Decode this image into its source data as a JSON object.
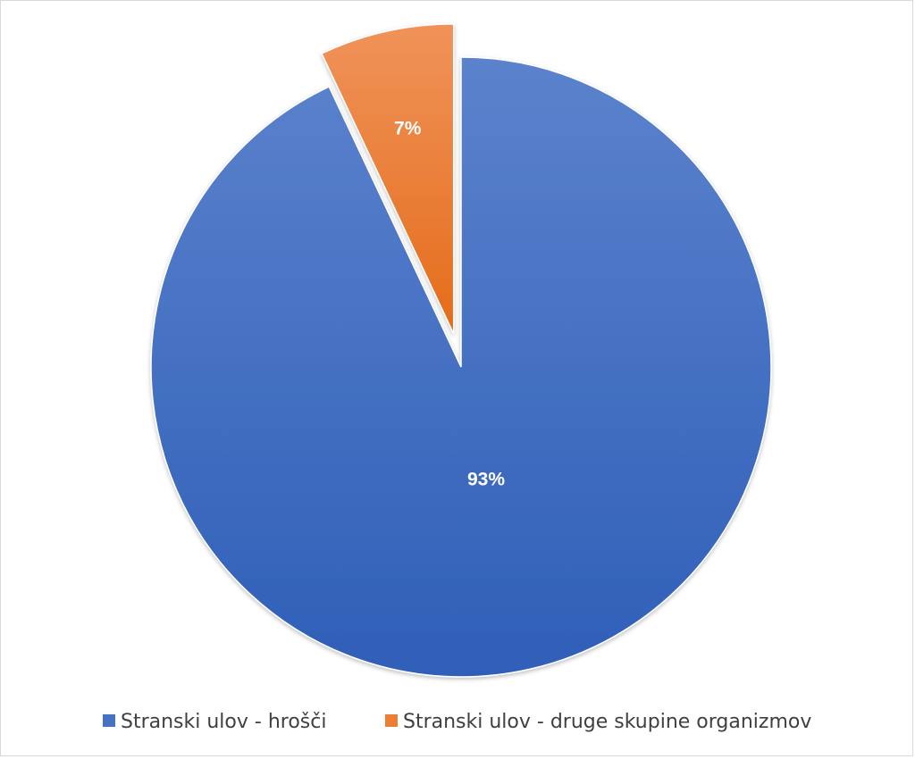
{
  "chart_data": {
    "type": "pie",
    "title": "",
    "legend_position": "bottom",
    "slices": [
      {
        "label": "Stranski ulov - hrošči",
        "value": 93,
        "display": "93%",
        "color": "#4472c4",
        "exploded": false
      },
      {
        "label": "Stranski ulov - druge skupine organizmov",
        "value": 7,
        "display": "7%",
        "color": "#ed7d31",
        "exploded": true
      }
    ]
  }
}
